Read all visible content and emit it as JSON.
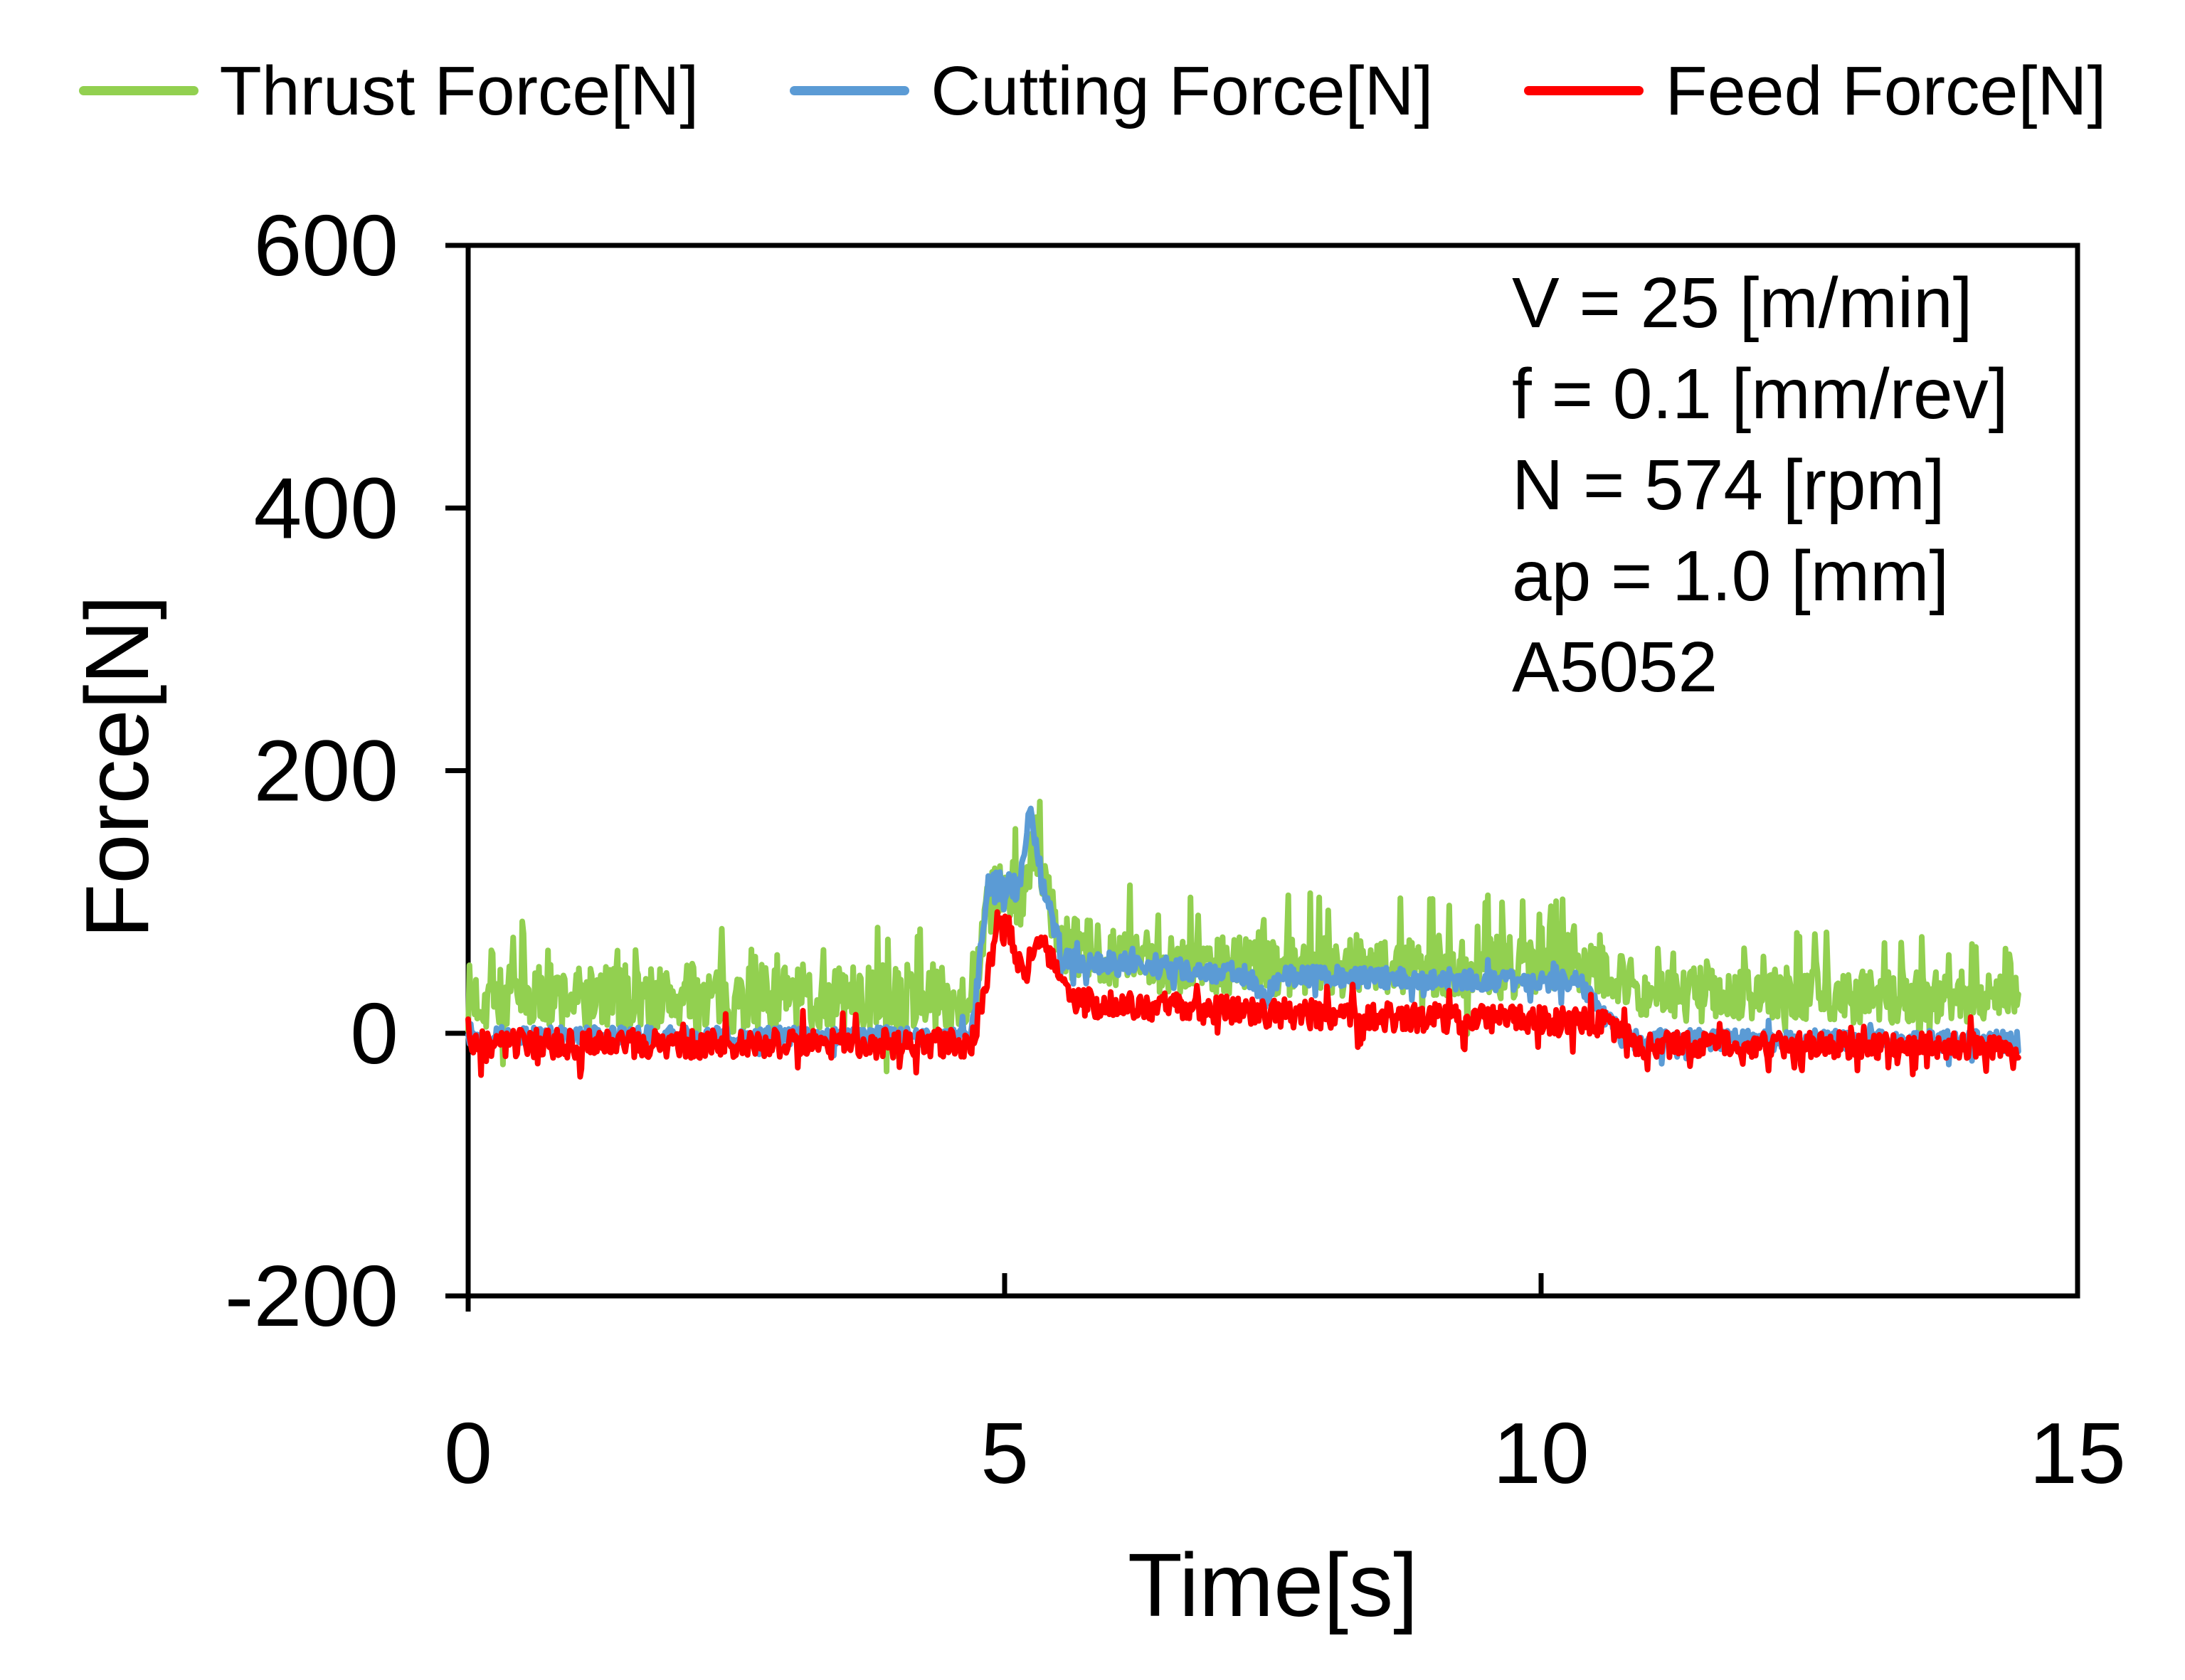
{
  "chart_data": {
    "type": "line",
    "title": "",
    "xlabel": "Time[s]",
    "ylabel": "Force[N]",
    "xlim": [
      0,
      15
    ],
    "ylim": [
      -200,
      600
    ],
    "xticks": [
      0,
      5,
      10,
      15
    ],
    "yticks": [
      -200,
      0,
      200,
      400,
      600
    ],
    "grid": false,
    "frame": true,
    "legend_position": "top",
    "background": "#FFFFFF",
    "axis_color": "#000000",
    "annotation": {
      "lines": [
        "V = 25 [m/min]",
        "f = 0.1 [mm/rev]",
        "N = 574 [rpm]",
        "ap = 1.0 [mm]",
        "A5052"
      ]
    },
    "sampling": {
      "t_start": 0,
      "t_end": 14.45,
      "dt_s": 0.012
    },
    "segments_format": "[t_start_s, t_end_s, mean_start_N, mean_end_N, noise_amplitude_N]",
    "series": [
      {
        "name": "Thrust Force[N]",
        "color": "#92D050",
        "segments": [
          [
            0.0,
            4.7,
            27,
            27,
            26
          ],
          [
            4.7,
            4.85,
            40,
            95,
            25
          ],
          [
            4.85,
            5.18,
            100,
            105,
            30
          ],
          [
            5.18,
            5.3,
            110,
            145,
            22
          ],
          [
            5.3,
            5.5,
            140,
            72,
            22
          ],
          [
            5.5,
            6.2,
            66,
            58,
            24
          ],
          [
            6.2,
            9.9,
            55,
            50,
            24
          ],
          [
            9.9,
            10.55,
            58,
            56,
            27
          ],
          [
            10.55,
            10.95,
            52,
            32,
            22
          ],
          [
            10.95,
            14.45,
            30,
            28,
            21
          ]
        ]
      },
      {
        "name": "Cutting Force[N]",
        "color": "#5B9BD5",
        "segments": [
          [
            0.0,
            4.7,
            -2,
            -2,
            7
          ],
          [
            4.7,
            4.84,
            0,
            105,
            12
          ],
          [
            4.84,
            5.14,
            108,
            112,
            16
          ],
          [
            5.14,
            5.24,
            115,
            172,
            8
          ],
          [
            5.24,
            5.33,
            172,
            120,
            8
          ],
          [
            5.33,
            5.52,
            120,
            62,
            10
          ],
          [
            5.52,
            6.6,
            56,
            50,
            9
          ],
          [
            6.6,
            7.28,
            49,
            45,
            8
          ],
          [
            7.28,
            7.42,
            42,
            26,
            8
          ],
          [
            7.42,
            7.6,
            26,
            44,
            8
          ],
          [
            7.6,
            10.35,
            44,
            39,
            8
          ],
          [
            10.35,
            10.75,
            39,
            -3,
            8
          ],
          [
            10.75,
            14.45,
            -5,
            -6,
            8
          ]
        ]
      },
      {
        "name": "Feed Force[N]",
        "color": "#FF0000",
        "segments": [
          [
            0.0,
            4.7,
            -8,
            -8,
            11
          ],
          [
            4.7,
            4.93,
            -5,
            78,
            12
          ],
          [
            4.93,
            5.06,
            80,
            80,
            13
          ],
          [
            5.06,
            5.18,
            75,
            38,
            10
          ],
          [
            5.18,
            5.3,
            40,
            78,
            10
          ],
          [
            5.3,
            5.62,
            76,
            27,
            10
          ],
          [
            5.62,
            7.2,
            24,
            17,
            11
          ],
          [
            7.2,
            10.6,
            16,
            8,
            11
          ],
          [
            10.6,
            10.88,
            8,
            -8,
            10
          ],
          [
            10.88,
            14.45,
            -9,
            -9,
            10
          ]
        ]
      }
    ]
  }
}
